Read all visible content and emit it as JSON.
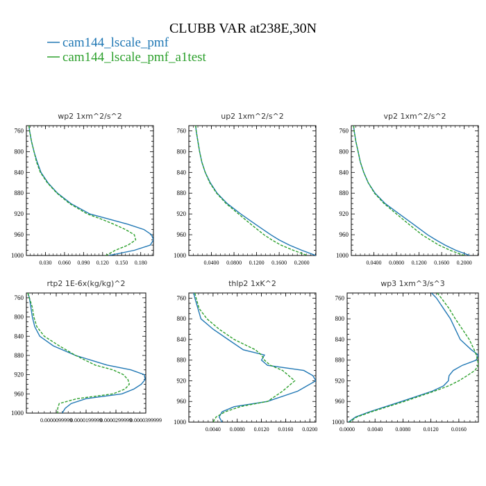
{
  "title": "CLUBB VAR at238E,30N",
  "legend": [
    {
      "label": "cam144_lscale_pmf",
      "color": "#1f77b4"
    },
    {
      "label": "cam144_lscale_pmf_a1test",
      "color": "#2ca02c"
    }
  ],
  "chart_data": [
    {
      "type": "line",
      "title": "wp2   1xm^2/s^2",
      "ylim": [
        1000,
        750
      ],
      "xlim": [
        0.0,
        0.2
      ],
      "yticks": [
        "760",
        "800",
        "840",
        "880",
        "920",
        "960",
        "1000"
      ],
      "xticks": [
        "0.030",
        "0.060",
        "0.090",
        "0.120",
        "0.150",
        "0.180"
      ],
      "y": [
        750,
        760,
        780,
        800,
        820,
        840,
        860,
        880,
        900,
        920,
        930,
        940,
        950,
        960,
        970,
        980,
        990,
        1000
      ],
      "series": [
        {
          "name": "cam144_lscale_pmf",
          "values": [
            0.004,
            0.005,
            0.008,
            0.012,
            0.017,
            0.023,
            0.034,
            0.049,
            0.07,
            0.1,
            0.13,
            0.16,
            0.185,
            0.197,
            0.2,
            0.195,
            0.17,
            0.13
          ]
        },
        {
          "name": "cam144_lscale_pmf_a1test",
          "values": [
            0.004,
            0.005,
            0.008,
            0.012,
            0.016,
            0.022,
            0.033,
            0.048,
            0.068,
            0.096,
            0.118,
            0.138,
            0.156,
            0.17,
            0.172,
            0.16,
            0.14,
            0.125
          ]
        }
      ]
    },
    {
      "type": "line",
      "title": "up2   1xm^2/s^2",
      "ylim": [
        1000,
        750
      ],
      "xlim": [
        0.0,
        0.225
      ],
      "yticks": [
        "760",
        "800",
        "840",
        "880",
        "920",
        "960",
        "1000"
      ],
      "xticks": [
        "0.0400",
        "0.0800",
        "0.1200",
        "0.1600",
        "0.2000"
      ],
      "y": [
        750,
        760,
        780,
        800,
        820,
        840,
        860,
        880,
        900,
        920,
        940,
        960,
        970,
        980,
        990,
        1000
      ],
      "series": [
        {
          "name": "cam144_lscale_pmf",
          "values": [
            0.012,
            0.013,
            0.016,
            0.019,
            0.023,
            0.029,
            0.038,
            0.05,
            0.068,
            0.092,
            0.118,
            0.145,
            0.16,
            0.178,
            0.2,
            0.225
          ]
        },
        {
          "name": "cam144_lscale_pmf_a1test",
          "values": [
            0.012,
            0.013,
            0.016,
            0.019,
            0.023,
            0.029,
            0.037,
            0.049,
            0.066,
            0.088,
            0.11,
            0.133,
            0.147,
            0.163,
            0.185,
            0.21
          ]
        }
      ]
    },
    {
      "type": "line",
      "title": "vp2   1xm^2/s^2",
      "ylim": [
        1000,
        750
      ],
      "xlim": [
        0.0,
        0.225
      ],
      "yticks": [
        "760",
        "800",
        "840",
        "880",
        "920",
        "960",
        "1000"
      ],
      "xticks": [
        "0.0400",
        "0.0800",
        "0.1200",
        "0.1600",
        "0.2000"
      ],
      "y": [
        750,
        760,
        780,
        800,
        820,
        840,
        860,
        880,
        900,
        920,
        940,
        960,
        970,
        980,
        990,
        1000
      ],
      "series": [
        {
          "name": "cam144_lscale_pmf",
          "values": [
            0.004,
            0.005,
            0.008,
            0.012,
            0.016,
            0.022,
            0.03,
            0.042,
            0.06,
            0.085,
            0.11,
            0.135,
            0.15,
            0.166,
            0.185,
            0.21
          ]
        },
        {
          "name": "cam144_lscale_pmf_a1test",
          "values": [
            0.004,
            0.005,
            0.008,
            0.012,
            0.016,
            0.022,
            0.03,
            0.041,
            0.058,
            0.08,
            0.102,
            0.125,
            0.14,
            0.155,
            0.175,
            0.2
          ]
        }
      ]
    },
    {
      "type": "line",
      "title": "rtp2   1E-6x(kg/kg)^2",
      "ylim": [
        1000,
        750
      ],
      "xlim": [
        0.0,
        4e-05
      ],
      "yticks": [
        "760",
        "800",
        "840",
        "880",
        "920",
        "960",
        "1000"
      ],
      "xticks": [
        "0.0000099999",
        "0.0000199999",
        "0.0000299999",
        "0.0000399999"
      ],
      "y": [
        750,
        760,
        780,
        800,
        820,
        840,
        860,
        880,
        900,
        910,
        920,
        930,
        940,
        950,
        960,
        970,
        980,
        990,
        1000
      ],
      "series": [
        {
          "name": "cam144_lscale_pmf",
          "values": [
            5e-07,
            1e-06,
            1.5e-06,
            2e-06,
            2.8e-06,
            4.5e-06,
            9e-06,
            1.65e-05,
            2.7e-05,
            3.5e-05,
            3.95e-05,
            3.98e-05,
            3.85e-05,
            3.6e-05,
            3.2e-05,
            2e-05,
            1.5e-05,
            1.3e-05,
            1.2e-05
          ]
        },
        {
          "name": "cam144_lscale_pmf_a1test",
          "values": [
            5e-07,
            1e-06,
            2e-06,
            2.5e-06,
            3.5e-06,
            6e-06,
            1.1e-05,
            1.65e-05,
            2.3e-05,
            2.9e-05,
            3.25e-05,
            3.4e-05,
            3.45e-05,
            3.3e-05,
            2.9e-05,
            1.7e-05,
            1.1e-05,
            1.05e-05,
            1.05e-05
          ]
        }
      ]
    },
    {
      "type": "line",
      "title": "thlp2   1xK^2",
      "ylim": [
        1000,
        750
      ],
      "xlim": [
        0.0,
        0.021
      ],
      "yticks": [
        "760",
        "800",
        "840",
        "880",
        "920",
        "960",
        "1000"
      ],
      "xticks": [
        "0.0040",
        "0.0080",
        "0.0120",
        "0.0160",
        "0.0200"
      ],
      "y": [
        750,
        760,
        780,
        800,
        820,
        840,
        860,
        870,
        880,
        890,
        900,
        910,
        920,
        930,
        940,
        960,
        970,
        980,
        990,
        1000
      ],
      "series": [
        {
          "name": "cam144_lscale_pmf",
          "values": [
            0.0008,
            0.001,
            0.0015,
            0.002,
            0.004,
            0.0065,
            0.009,
            0.0125,
            0.012,
            0.013,
            0.019,
            0.0205,
            0.021,
            0.0195,
            0.018,
            0.013,
            0.0075,
            0.0055,
            0.005,
            0.0055
          ]
        },
        {
          "name": "cam144_lscale_pmf_a1test",
          "values": [
            0.001,
            0.0012,
            0.0017,
            0.003,
            0.005,
            0.0075,
            0.011,
            0.012,
            0.0125,
            0.0135,
            0.0155,
            0.0165,
            0.0175,
            0.0165,
            0.0155,
            0.013,
            0.0085,
            0.006,
            0.0045,
            0.004
          ]
        }
      ]
    },
    {
      "type": "line",
      "title": "wp3   1xm^3/s^3",
      "ylim": [
        1000,
        750
      ],
      "xlim": [
        0.0,
        0.0188
      ],
      "yticks": [
        "760",
        "800",
        "840",
        "880",
        "920",
        "960",
        "1000"
      ],
      "xticks": [
        "0.0000",
        "0.0040",
        "0.0080",
        "0.0120",
        "0.0160"
      ],
      "y": [
        750,
        760,
        780,
        800,
        820,
        840,
        860,
        870,
        880,
        890,
        900,
        910,
        920,
        930,
        940,
        960,
        980,
        990,
        1000
      ],
      "series": [
        {
          "name": "cam144_lscale_pmf",
          "values": [
            0.0121,
            0.0128,
            0.0138,
            0.0148,
            0.0155,
            0.0162,
            0.0178,
            0.0188,
            0.0185,
            0.0165,
            0.0152,
            0.0146,
            0.0145,
            0.0138,
            0.0122,
            0.0078,
            0.0032,
            0.0012,
            0.0002
          ]
        },
        {
          "name": "cam144_lscale_pmf_a1test",
          "values": [
            0.0129,
            0.0135,
            0.0146,
            0.0155,
            0.0165,
            0.0175,
            0.0182,
            0.0185,
            0.0187,
            0.0188,
            0.0183,
            0.0172,
            0.016,
            0.0145,
            0.0125,
            0.0082,
            0.0035,
            0.0014,
            0.0003
          ]
        }
      ]
    }
  ]
}
